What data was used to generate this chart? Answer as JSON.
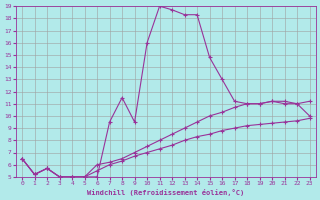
{
  "title": "",
  "xlabel": "Windchill (Refroidissement éolien,°C)",
  "background_color": "#b2eaea",
  "grid_color": "#a0a0a0",
  "line_color": "#993399",
  "xlim": [
    -0.5,
    23.5
  ],
  "ylim": [
    5,
    19
  ],
  "xticks": [
    0,
    1,
    2,
    3,
    4,
    5,
    6,
    7,
    8,
    9,
    10,
    11,
    12,
    13,
    14,
    15,
    16,
    17,
    18,
    19,
    20,
    21,
    22,
    23
  ],
  "yticks": [
    5,
    6,
    7,
    8,
    9,
    10,
    11,
    12,
    13,
    14,
    15,
    16,
    17,
    18,
    19
  ],
  "curve1_x": [
    0,
    1,
    2,
    3,
    4,
    5,
    6,
    7,
    8,
    9,
    10,
    11,
    12,
    13,
    14,
    15,
    16,
    17,
    18,
    19,
    20,
    21,
    22,
    23
  ],
  "curve1_y": [
    6.5,
    5.2,
    5.7,
    5.0,
    5.0,
    5.0,
    5.0,
    9.5,
    11.5,
    9.5,
    16.0,
    19.0,
    18.7,
    18.3,
    18.3,
    14.8,
    13.0,
    11.2,
    11.0,
    11.0,
    11.2,
    11.0,
    11.0,
    10.0
  ],
  "curve2_x": [
    0,
    1,
    2,
    3,
    4,
    5,
    6,
    7,
    8,
    9,
    10,
    11,
    12,
    13,
    14,
    15,
    16,
    17,
    18,
    19,
    20,
    21,
    22,
    23
  ],
  "curve2_y": [
    6.5,
    5.2,
    5.7,
    5.0,
    5.0,
    5.0,
    6.0,
    6.2,
    6.5,
    7.0,
    7.5,
    8.0,
    8.5,
    9.0,
    9.5,
    10.0,
    10.3,
    10.7,
    11.0,
    11.0,
    11.2,
    11.2,
    11.0,
    11.2
  ],
  "curve3_x": [
    0,
    1,
    2,
    3,
    4,
    5,
    6,
    7,
    8,
    9,
    10,
    11,
    12,
    13,
    14,
    15,
    16,
    17,
    18,
    19,
    20,
    21,
    22,
    23
  ],
  "curve3_y": [
    6.5,
    5.2,
    5.7,
    5.0,
    5.0,
    5.0,
    5.5,
    6.0,
    6.3,
    6.7,
    7.0,
    7.3,
    7.6,
    8.0,
    8.3,
    8.5,
    8.8,
    9.0,
    9.2,
    9.3,
    9.4,
    9.5,
    9.6,
    9.8
  ]
}
